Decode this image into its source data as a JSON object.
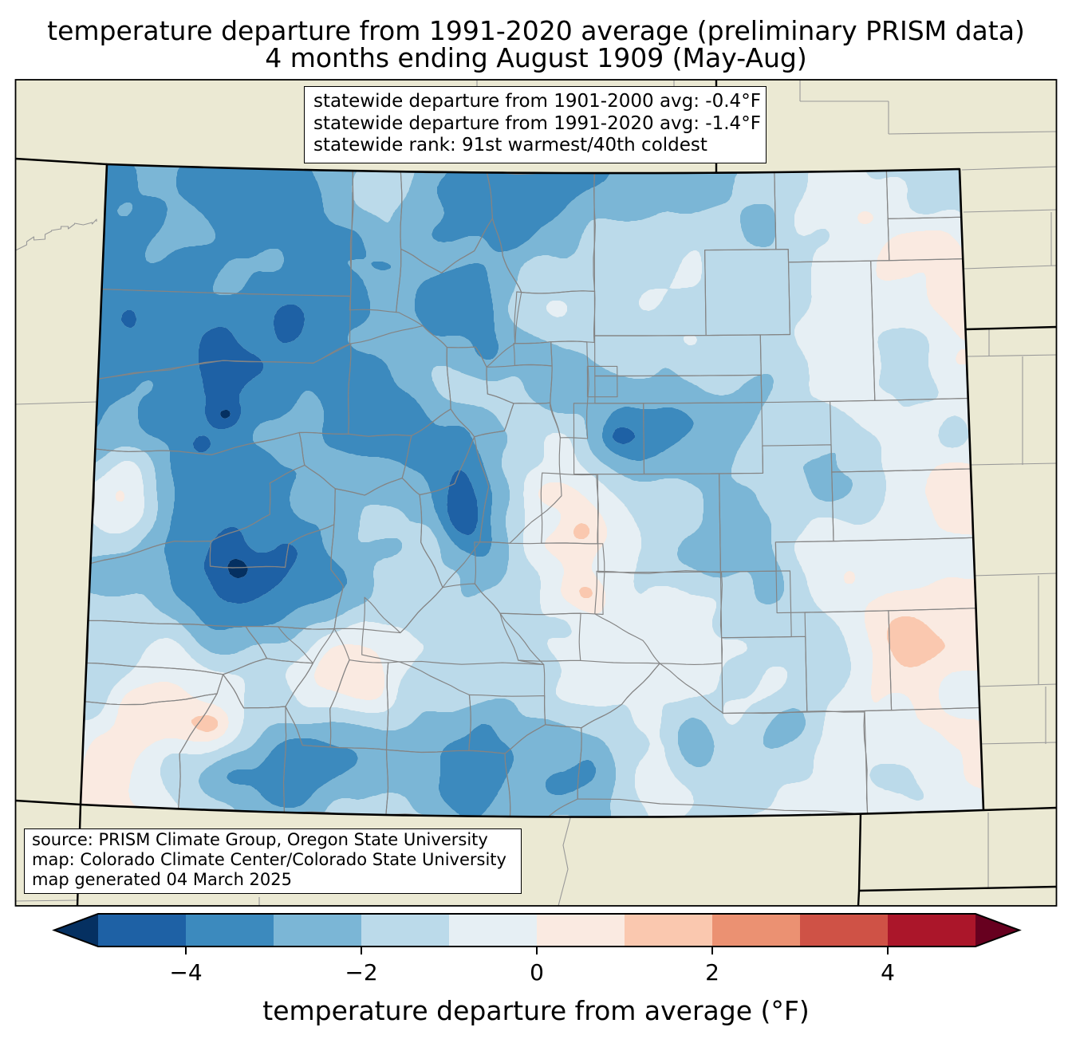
{
  "title": {
    "line1": "temperature departure from 1991-2020 average (preliminary PRISM data)",
    "line2": "4 months ending August 1909 (May-Aug)"
  },
  "stats_box": {
    "line1": "statewide departure from 1901-2000 avg: -0.4°F",
    "line2": "statewide departure from 1991-2020 avg: -1.4°F",
    "line3": "statewide rank: 91st warmest/40th coldest"
  },
  "source_box": {
    "line1": "source: PRISM Climate Group, Oregon State University",
    "line2": "map: Colorado Climate Center/Colorado State University",
    "line3": "map generated 04 March 2025"
  },
  "colorbar": {
    "label": "temperature departure from average (°F)",
    "ticks": [
      {
        "value": -4,
        "label": "−4"
      },
      {
        "value": -2,
        "label": "−2"
      },
      {
        "value": 0,
        "label": "0"
      },
      {
        "value": 2,
        "label": "2"
      },
      {
        "value": 4,
        "label": "4"
      }
    ],
    "levels": [
      -5,
      -4,
      -3,
      -2,
      -1,
      0,
      1,
      2,
      3,
      4,
      5
    ],
    "segment_colors": [
      "#1e61a5",
      "#3c8abe",
      "#7bb6d6",
      "#bbdaea",
      "#e6eff4",
      "#faeae1",
      "#fac8af",
      "#eb9172",
      "#cf5246",
      "#ab162a"
    ],
    "under_color": "#053061",
    "over_color": "#67001f"
  },
  "map": {
    "region": "Colorado",
    "background_color": "#ebe9d3",
    "state_border_color": "#000000",
    "county_line_color": "#848484"
  },
  "chart_data": {
    "type": "choropleth_map",
    "title": "temperature departure from 1991-2020 average (preliminary PRISM data)",
    "subtitle": "4 months ending August 1909 (May-Aug)",
    "region": "Colorado",
    "statewide_departure_1901_2000_F": -0.4,
    "statewide_departure_1991_2020_F": -1.4,
    "statewide_rank": "91st warmest/40th coldest",
    "colorbar_label": "temperature departure from average (°F)",
    "colorbar_ticks": [
      -4,
      -2,
      0,
      2,
      4
    ],
    "colorbar_range_F": [
      -5,
      5
    ],
    "units": "°F"
  }
}
